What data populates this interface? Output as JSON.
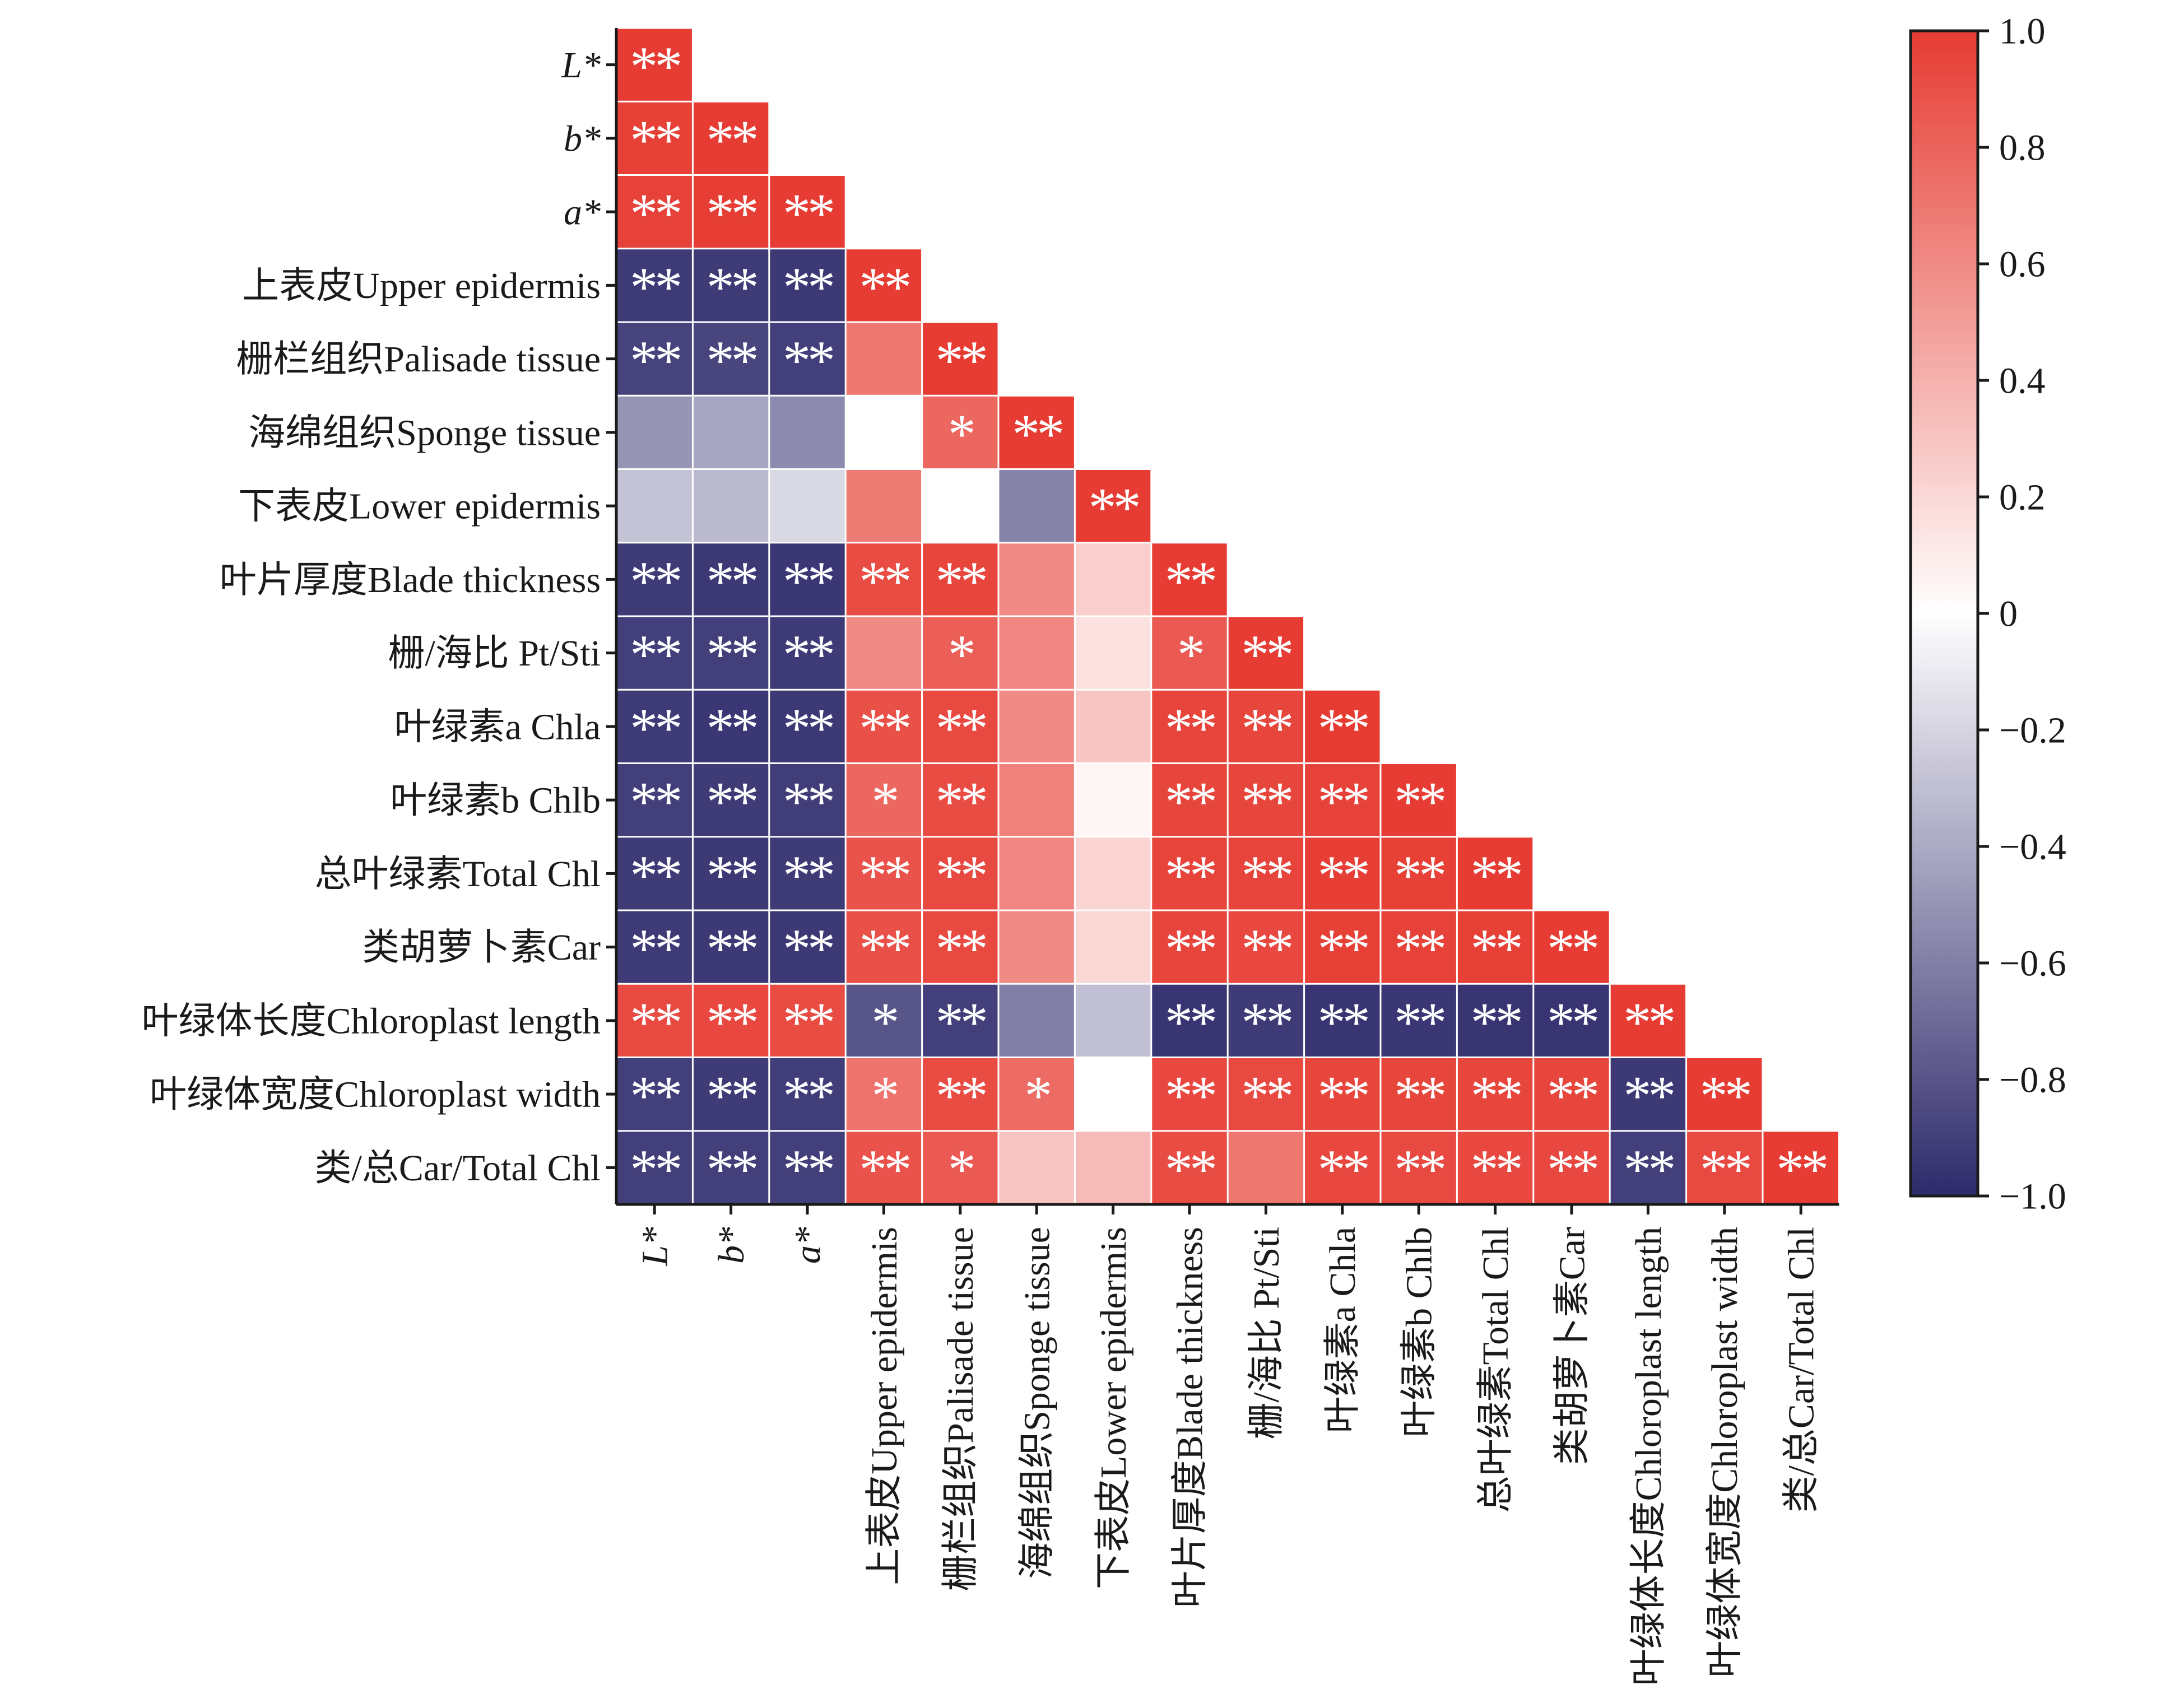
{
  "chart_data": {
    "type": "heatmap",
    "variables": [
      {
        "label": "L*",
        "italic": true
      },
      {
        "label": "b*",
        "italic": true
      },
      {
        "label": "a*",
        "italic": true
      },
      {
        "label": "上表皮Upper epidermis",
        "italic": false
      },
      {
        "label": "栅栏组织Palisade tissue",
        "italic": false
      },
      {
        "label": "海绵组织Sponge tissue",
        "italic": false
      },
      {
        "label": "下表皮Lower epidermis",
        "italic": false
      },
      {
        "label": "叶片厚度Blade thickness",
        "italic": false
      },
      {
        "label": "栅/海比 Pt/Sti",
        "italic": false
      },
      {
        "label": "叶绿素a Chla",
        "italic": false
      },
      {
        "label": "叶绿素b Chlb",
        "italic": false
      },
      {
        "label": "总叶绿素Total Chl",
        "italic": false
      },
      {
        "label": "类胡萝卜素Car",
        "italic": false
      },
      {
        "label": "叶绿体长度Chloroplast length",
        "italic": false
      },
      {
        "label": "叶绿体宽度Chloroplast width",
        "italic": false
      },
      {
        "label": "类/总Car/Total Chl",
        "italic": false
      }
    ],
    "values": [
      [
        1.0
      ],
      [
        0.98,
        1.0
      ],
      [
        0.97,
        0.99,
        1.0
      ],
      [
        -0.92,
        -0.92,
        -0.93,
        1.0
      ],
      [
        -0.88,
        -0.87,
        -0.9,
        0.7,
        1.0
      ],
      [
        -0.5,
        -0.42,
        -0.55,
        0.0,
        0.78,
        1.0
      ],
      [
        -0.28,
        -0.33,
        -0.18,
        0.68,
        0.0,
        -0.58,
        1.0
      ],
      [
        -0.92,
        -0.93,
        -0.94,
        0.92,
        0.95,
        0.6,
        0.25,
        1.0
      ],
      [
        -0.9,
        -0.9,
        -0.92,
        0.6,
        0.82,
        0.62,
        0.15,
        0.85,
        1.0
      ],
      [
        -0.92,
        -0.94,
        -0.93,
        0.9,
        0.93,
        0.6,
        0.3,
        0.96,
        0.95,
        1.0
      ],
      [
        -0.9,
        -0.92,
        -0.91,
        0.78,
        0.92,
        0.65,
        0.05,
        0.95,
        0.95,
        0.97,
        1.0
      ],
      [
        -0.92,
        -0.93,
        -0.92,
        0.88,
        0.93,
        0.62,
        0.22,
        0.96,
        0.96,
        0.99,
        0.98,
        1.0
      ],
      [
        -0.92,
        -0.93,
        -0.93,
        0.9,
        0.93,
        0.6,
        0.2,
        0.96,
        0.94,
        0.98,
        0.97,
        0.98,
        1.0
      ],
      [
        0.93,
        0.94,
        0.92,
        -0.8,
        -0.9,
        -0.6,
        -0.3,
        -0.95,
        -0.92,
        -0.95,
        -0.94,
        -0.95,
        -0.95,
        1.0
      ],
      [
        -0.9,
        -0.92,
        -0.91,
        0.72,
        0.92,
        0.76,
        0.0,
        0.94,
        0.93,
        0.95,
        0.95,
        0.95,
        0.95,
        -0.93,
        1.0
      ],
      [
        -0.9,
        -0.9,
        -0.9,
        0.88,
        0.85,
        0.3,
        0.35,
        0.92,
        0.7,
        0.94,
        0.93,
        0.94,
        0.94,
        -0.9,
        0.93,
        1.0
      ]
    ],
    "significance": [
      [
        "**"
      ],
      [
        "**",
        "**"
      ],
      [
        "**",
        "**",
        "**"
      ],
      [
        "**",
        "**",
        "**",
        "**"
      ],
      [
        "**",
        "**",
        "**",
        "",
        "**"
      ],
      [
        "",
        "",
        "",
        "",
        "*",
        "**"
      ],
      [
        "",
        "",
        "",
        "",
        "",
        "",
        "**"
      ],
      [
        "**",
        "**",
        "**",
        "**",
        "**",
        "",
        "",
        "**"
      ],
      [
        "**",
        "**",
        "**",
        "",
        "*",
        "",
        "",
        "*",
        "**"
      ],
      [
        "**",
        "**",
        "**",
        "**",
        "**",
        "",
        "",
        "**",
        "**",
        "**"
      ],
      [
        "**",
        "**",
        "**",
        "*",
        "**",
        "",
        "",
        "**",
        "**",
        "**",
        "**"
      ],
      [
        "**",
        "**",
        "**",
        "**",
        "**",
        "",
        "",
        "**",
        "**",
        "**",
        "**",
        "**"
      ],
      [
        "**",
        "**",
        "**",
        "**",
        "**",
        "",
        "",
        "**",
        "**",
        "**",
        "**",
        "**",
        "**"
      ],
      [
        "**",
        "**",
        "**",
        "*",
        "**",
        "",
        "",
        "**",
        "**",
        "**",
        "**",
        "**",
        "**",
        "**"
      ],
      [
        "**",
        "**",
        "**",
        "*",
        "**",
        "*",
        "",
        "**",
        "**",
        "**",
        "**",
        "**",
        "**",
        "**",
        "**"
      ],
      [
        "**",
        "**",
        "**",
        "**",
        "*",
        "",
        "",
        "**",
        "",
        "**",
        "**",
        "**",
        "**",
        "**",
        "**",
        "**"
      ]
    ],
    "color_scale": {
      "min": -1.0,
      "max": 1.0,
      "negative_color": "#2e2a6b",
      "zero_color": "#ffffff",
      "positive_color": "#e63c33",
      "ticks": [
        {
          "value": 1.0,
          "label": "1.0"
        },
        {
          "value": 0.8,
          "label": "0.8"
        },
        {
          "value": 0.6,
          "label": "0.6"
        },
        {
          "value": 0.4,
          "label": "0.4"
        },
        {
          "value": 0.2,
          "label": "0.2"
        },
        {
          "value": 0.0,
          "label": "0"
        },
        {
          "value": -0.2,
          "label": "−0.2"
        },
        {
          "value": -0.4,
          "label": "−0.4"
        },
        {
          "value": -0.6,
          "label": "−0.6"
        },
        {
          "value": -0.8,
          "label": "−0.8"
        },
        {
          "value": -1.0,
          "label": "−1.0"
        }
      ]
    },
    "grid": false,
    "legend_position": "right"
  }
}
